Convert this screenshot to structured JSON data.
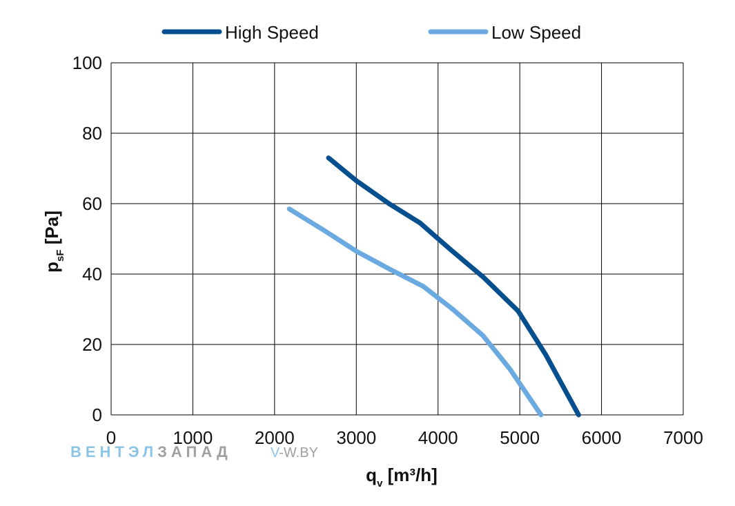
{
  "chart_data": {
    "type": "line",
    "title": "",
    "legend": {
      "placement": "top",
      "entries": [
        "High Speed",
        "Low Speed"
      ]
    },
    "xlabel": {
      "main": "q",
      "sub": "v",
      "suffix": " [m³/h]"
    },
    "ylabel": {
      "main": "p",
      "sub": "sF",
      "suffix": " [Pa]"
    },
    "xlim": [
      0,
      7000
    ],
    "ylim": [
      0,
      100
    ],
    "xticks": [
      0,
      1000,
      2000,
      3000,
      4000,
      5000,
      6000,
      7000
    ],
    "yticks": [
      0,
      20,
      40,
      60,
      80,
      100
    ],
    "grid": true,
    "series": [
      {
        "name": "High Speed",
        "color": "#064f8f",
        "x": [
          2660,
          3000,
          3400,
          3780,
          4150,
          4560,
          4980,
          5320,
          5720
        ],
        "y": [
          73,
          66.5,
          60,
          54.5,
          47,
          39,
          29.5,
          17,
          0
        ]
      },
      {
        "name": "Low Speed",
        "color": "#6aaae0",
        "x": [
          2180,
          2600,
          3000,
          3400,
          3820,
          4180,
          4550,
          4880,
          5260
        ],
        "y": [
          58.5,
          52.5,
          46.5,
          41.5,
          36.5,
          30,
          22.5,
          13,
          0
        ]
      }
    ]
  },
  "watermark": {
    "brand_part1": "ВЕНТЭЛ",
    "brand_part2": "ЗАПАД",
    "url_part1": "V",
    "url_part2": "-W.BY",
    "color_blue": "#8cc4e8",
    "color_gray": "#a0a0a0"
  }
}
